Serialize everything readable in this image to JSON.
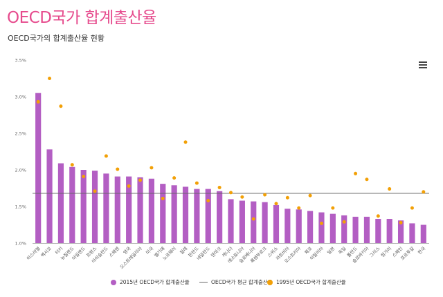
{
  "header": {
    "title": "OECD국가 합계출산율",
    "subtitle": "OECD국가의 합계출산율 현황"
  },
  "menu": {
    "icon": "hamburger-menu-icon"
  },
  "legend": {
    "bar_label": "2015년 OECD국가 합계출산율",
    "line_label": "OECD국가 평균 합계출산율",
    "dot_label": "1995년 OECD국가 합계출산율"
  },
  "colors": {
    "title": "#e64b8d",
    "bar": "#b35ec3",
    "dot": "#f2a007",
    "line": "#666666"
  },
  "chart_data": {
    "type": "bar",
    "categories": [
      "이스라엘",
      "멕시코",
      "터키",
      "뉴질랜드",
      "아일랜드",
      "프랑스",
      "아이슬란드",
      "스웨덴",
      "영국",
      "오스트레일리아",
      "미국",
      "벨기에",
      "노르웨이",
      "칠레",
      "핀란드",
      "네덜란드",
      "덴마크",
      "캐나다",
      "에스토니아",
      "슬로베니아",
      "룩셈부르크",
      "스위스",
      "라트비아",
      "오스트리아",
      "체코",
      "이탈리아",
      "일본",
      "독일",
      "폴란드",
      "슬로바키아",
      "그리스",
      "헝가리",
      "스페인",
      "포르투갈",
      "한국"
    ],
    "series": [
      {
        "name": "2015년 OECD국가 합계출산율",
        "type": "bar",
        "values": [
          3.05,
          2.28,
          2.09,
          2.04,
          2.0,
          1.99,
          1.95,
          1.91,
          1.91,
          1.9,
          1.88,
          1.81,
          1.79,
          1.77,
          1.74,
          1.74,
          1.71,
          1.6,
          1.58,
          1.57,
          1.56,
          1.52,
          1.47,
          1.46,
          1.44,
          1.42,
          1.4,
          1.38,
          1.36,
          1.36,
          1.33,
          1.33,
          1.31,
          1.27,
          1.25
        ]
      },
      {
        "name": "1995년 OECD국가 합계출산율",
        "type": "scatter",
        "values": [
          2.93,
          3.25,
          2.87,
          2.07,
          1.91,
          1.71,
          2.19,
          2.01,
          1.78,
          1.86,
          2.03,
          1.61,
          1.89,
          2.38,
          1.82,
          1.58,
          1.76,
          1.69,
          1.63,
          1.33,
          1.66,
          1.54,
          1.62,
          1.48,
          1.65,
          1.27,
          1.48,
          1.29,
          1.95,
          1.87,
          1.37,
          1.74,
          1.28,
          1.48,
          1.7
        ]
      },
      {
        "name": "OECD국가 평균 합계출산율",
        "type": "line",
        "value": 1.68
      }
    ],
    "ylim": [
      1.0,
      3.5
    ],
    "yticks": [
      "1.0%",
      "1.5%",
      "2.0%",
      "2.5%",
      "3.0%",
      "3.5%"
    ],
    "grid": false,
    "legend_position": "bottom"
  }
}
